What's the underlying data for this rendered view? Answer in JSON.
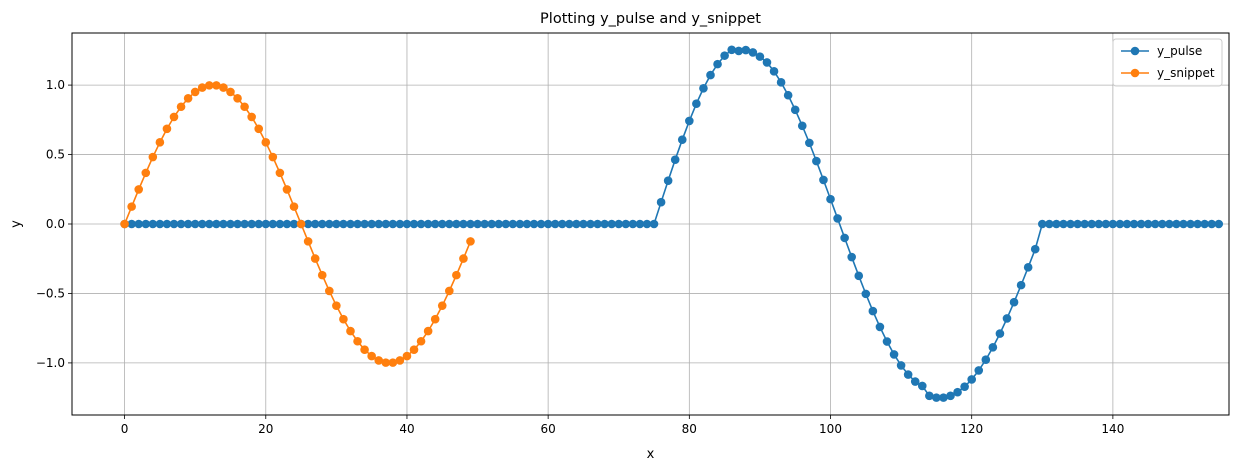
{
  "chart_data": {
    "type": "line",
    "title": "Plotting y_pulse and y_snippet",
    "xlabel": "x",
    "ylabel": "y",
    "xlim": [
      -7.45,
      156.45
    ],
    "ylim": [
      -1.375,
      1.375
    ],
    "xticks": [
      0,
      20,
      40,
      60,
      80,
      100,
      120,
      140
    ],
    "xtick_labels": [
      "0",
      "20",
      "40",
      "60",
      "80",
      "100",
      "120",
      "140"
    ],
    "yticks": [
      -1.0,
      -0.5,
      0.0,
      0.5,
      1.0
    ],
    "ytick_labels": [
      "−1.0",
      "−0.5",
      "0.0",
      "0.5",
      "1.0"
    ],
    "grid": true,
    "legend_position": "top-right",
    "series": [
      {
        "name": "y_pulse",
        "color": "#1f77b4",
        "marker": "circle",
        "x_start": 0,
        "x_step": 1,
        "values": [
          0,
          0,
          0,
          0,
          0,
          0,
          0,
          0,
          0,
          0,
          0,
          0,
          0,
          0,
          0,
          0,
          0,
          0,
          0,
          0,
          0,
          0,
          0,
          0,
          0,
          0,
          0,
          0,
          0,
          0,
          0,
          0,
          0,
          0,
          0,
          0,
          0,
          0,
          0,
          0,
          0,
          0,
          0,
          0,
          0,
          0,
          0,
          0,
          0,
          0,
          0,
          0,
          0,
          0,
          0,
          0,
          0,
          0,
          0,
          0,
          0,
          0,
          0,
          0,
          0,
          0,
          0,
          0,
          0,
          0,
          0,
          0,
          0,
          0,
          0,
          0,
          0.157,
          0.312,
          0.463,
          0.607,
          0.742,
          0.866,
          0.977,
          1.072,
          1.151,
          1.212,
          1.254,
          1.246,
          1.252,
          1.235,
          1.205,
          1.163,
          1.099,
          1.02,
          0.927,
          0.822,
          0.707,
          0.584,
          0.453,
          0.317,
          0.179,
          0.04,
          -0.1,
          -0.238,
          -0.373,
          -0.503,
          -0.627,
          -0.741,
          -0.846,
          -0.939,
          -1.018,
          -1.084,
          -1.134,
          -1.166,
          -1.237,
          -1.25,
          -1.25,
          -1.237,
          -1.211,
          -1.171,
          -1.119,
          -1.054,
          -0.977,
          -0.888,
          -0.789,
          -0.68,
          -0.563,
          -0.44,
          -0.312,
          -0.181,
          0,
          0,
          0,
          0,
          0,
          0,
          0,
          0,
          0,
          0,
          0,
          0,
          0,
          0,
          0,
          0,
          0,
          0,
          0,
          0,
          0,
          0,
          0,
          0,
          0,
          0
        ]
      },
      {
        "name": "y_snippet",
        "color": "#ff7f0e",
        "marker": "circle",
        "x_start": 0,
        "x_step": 1,
        "values": [
          0,
          0.125,
          0.249,
          0.368,
          0.482,
          0.588,
          0.685,
          0.771,
          0.844,
          0.905,
          0.951,
          0.982,
          0.998,
          0.998,
          0.982,
          0.951,
          0.905,
          0.844,
          0.771,
          0.685,
          0.588,
          0.482,
          0.368,
          0.249,
          0.125,
          0,
          -0.125,
          -0.249,
          -0.368,
          -0.482,
          -0.588,
          -0.685,
          -0.771,
          -0.844,
          -0.905,
          -0.951,
          -0.982,
          -0.998,
          -0.998,
          -0.982,
          -0.951,
          -0.905,
          -0.844,
          -0.771,
          -0.685,
          -0.588,
          -0.482,
          -0.368,
          -0.249,
          -0.125
        ]
      }
    ]
  }
}
